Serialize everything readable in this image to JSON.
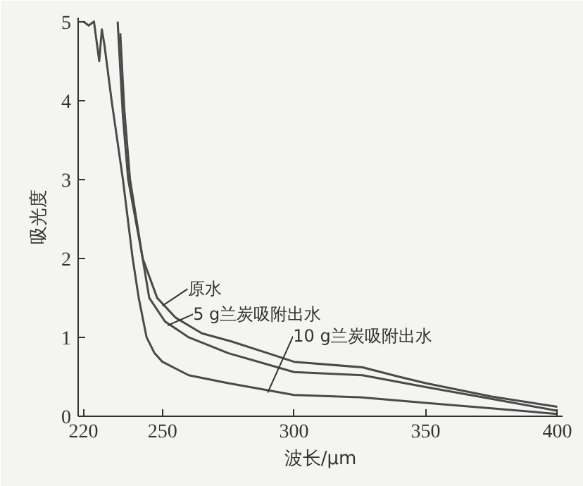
{
  "chart_data": {
    "type": "line",
    "xlabel": "波长/μm",
    "ylabel": "吸光度",
    "xlim": [
      218,
      402
    ],
    "ylim": [
      0,
      5.05
    ],
    "xticks": [
      220,
      250,
      300,
      350,
      400
    ],
    "yticks": [
      0,
      1,
      2,
      3,
      4,
      5
    ],
    "grid": false,
    "marker": "none",
    "line_style": "solid",
    "series": [
      {
        "color": "#4a4a4a",
        "x": [
          233,
          235,
          237,
          242.5,
          248,
          255,
          265,
          276,
          290,
          300,
          326,
          340,
          350,
          375,
          400
        ],
        "values": [
          5.0,
          3.8,
          3.0,
          2.0,
          1.5,
          1.25,
          1.05,
          0.95,
          0.8,
          0.69,
          0.62,
          0.5,
          0.42,
          0.25,
          0.12
        ]
      },
      {
        "color": "#4a4a4a",
        "x": [
          234,
          235.5,
          237.7,
          242.5,
          245,
          251,
          260,
          275,
          300,
          326,
          350,
          375,
          400
        ],
        "values": [
          4.85,
          3.9,
          3.0,
          2.0,
          1.5,
          1.2,
          1.0,
          0.8,
          0.56,
          0.52,
          0.37,
          0.22,
          0.07
        ]
      },
      {
        "color": "#4a4a4a",
        "x": [
          220,
          222,
          224,
          226,
          227,
          228,
          230.7,
          235,
          238.7,
          241,
          244,
          247,
          250,
          260,
          275,
          300,
          325,
          350,
          375,
          400
        ],
        "values": [
          5.0,
          4.95,
          5.0,
          4.5,
          4.9,
          4.7,
          4.0,
          3.0,
          2.0,
          1.5,
          1.0,
          0.8,
          0.69,
          0.52,
          0.42,
          0.27,
          0.24,
          0.17,
          0.1,
          0.03
        ]
      }
    ],
    "annotations": [
      {
        "text": "原水",
        "x": 250,
        "y": 1.4
      },
      {
        "text": "5 g兰炭吸附出水",
        "x": 252,
        "y": 1.15
      },
      {
        "text": "10 g兰炭吸附出水",
        "x": 290,
        "y": 0.3
      }
    ]
  }
}
